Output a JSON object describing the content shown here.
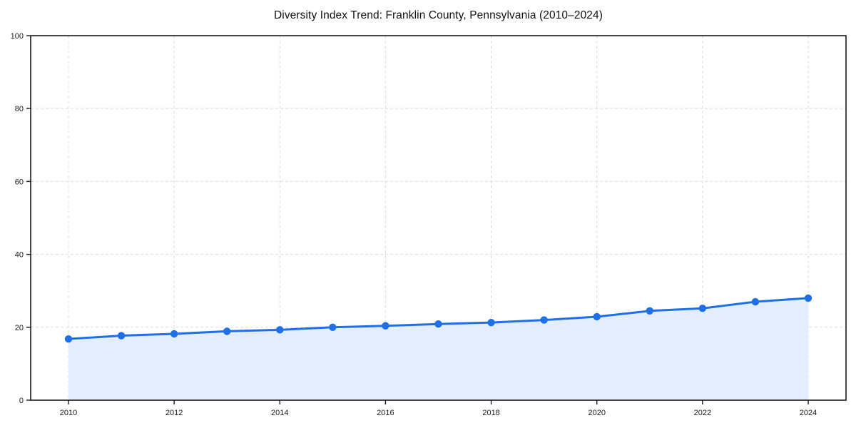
{
  "chart_data": {
    "type": "line",
    "title": "Diversity Index Trend: Franklin County, Pennsylvania (2010–2024)",
    "x": [
      2010,
      2011,
      2012,
      2013,
      2014,
      2015,
      2016,
      2017,
      2018,
      2019,
      2020,
      2021,
      2022,
      2023,
      2024
    ],
    "values": [
      16.8,
      17.7,
      18.2,
      18.9,
      19.3,
      20.0,
      20.4,
      20.9,
      21.3,
      22.0,
      22.9,
      24.5,
      25.2,
      27.0,
      28.0
    ],
    "xlabel": "",
    "ylabel": "",
    "xticks": [
      2010,
      2012,
      2014,
      2016,
      2018,
      2020,
      2022,
      2024
    ],
    "yticks": [
      0,
      20,
      40,
      60,
      80,
      100
    ],
    "ylim": [
      0,
      100
    ],
    "grid": "dashed-both-axes",
    "legend": "none",
    "area_fill": true,
    "marker": "circle",
    "colors": {
      "line": "#1f6fe8",
      "marker": "#1f6fe8",
      "fill": "#e3edfc",
      "grid": "#dcdcdc",
      "spine": "#1a1a1a",
      "tick_text": "#1a1a1a",
      "title_text": "#111111"
    }
  }
}
